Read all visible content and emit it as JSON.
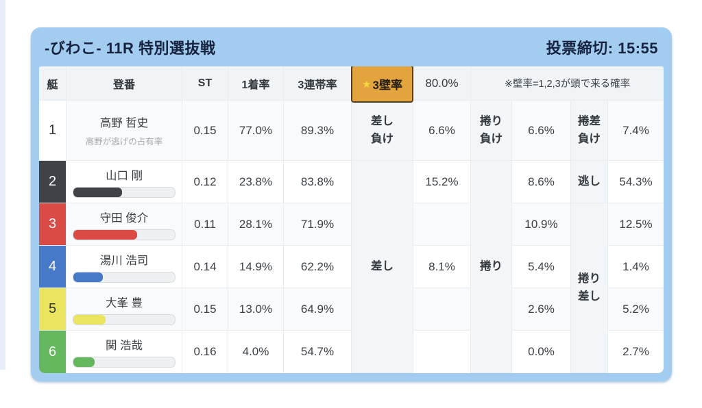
{
  "title_bar": {
    "race_title": "-びわこ- 11R 特別選抜戦",
    "deadline": "投票締切: 15:55"
  },
  "columns": {
    "boat": "艇",
    "entry": "登番",
    "st": "ST",
    "win_rate": "1着率",
    "top3_rate": "3連帯率",
    "wall_star": "★",
    "wall_label": "3壁率",
    "wall_value": "80.0%",
    "wall_note": "※壁率=1,2,3が頭で来る確率"
  },
  "move_labels": {
    "sashi_lose_1": "差し",
    "sashi_lose_2": "負け",
    "makuri_lose_1": "捲り",
    "makuri_lose_2": "負け",
    "makurizashi_lose_1": "捲差",
    "makurizashi_lose_2": "負け",
    "sashi": "差し",
    "makuri": "捲り",
    "nigashi": "逃し",
    "makurizashi_1": "捲り",
    "makurizashi_2": "差し"
  },
  "racers": [
    {
      "lane": "1",
      "lane_color": "#ffffff",
      "lane_text": "#2f353b",
      "name": "高野 哲史",
      "note": "高野が逃げの占有率",
      "st": "0.15",
      "win_rate": "77.0%",
      "top3_rate": "89.3%",
      "v1": "6.6%",
      "v2": "6.6%",
      "v3": "7.4%"
    },
    {
      "lane": "2",
      "lane_color": "#3f4247",
      "lane_text": "#ffffff",
      "name": "山口 剛",
      "bar_pct": 48,
      "st": "0.12",
      "win_rate": "23.8%",
      "top3_rate": "83.8%",
      "v1": "15.2%",
      "v2": "8.6%",
      "v3": "54.3%"
    },
    {
      "lane": "3",
      "lane_color": "#da4b45",
      "lane_text": "#ffffff",
      "name": "守田 俊介",
      "bar_pct": 63,
      "st": "0.11",
      "win_rate": "28.1%",
      "top3_rate": "71.9%",
      "v2": "10.9%",
      "v3": "12.5%"
    },
    {
      "lane": "4",
      "lane_color": "#4679c8",
      "lane_text": "#ffffff",
      "name": "湯川 浩司",
      "bar_pct": 29,
      "st": "0.14",
      "win_rate": "14.9%",
      "top3_rate": "62.2%",
      "v1": "8.1%",
      "v2": "5.4%",
      "v3": "1.4%"
    },
    {
      "lane": "5",
      "lane_color": "#eae45f",
      "lane_text": "#2f353b",
      "name": "大峯 豊",
      "bar_pct": 32,
      "st": "0.15",
      "win_rate": "13.0%",
      "top3_rate": "64.9%",
      "v2": "2.6%",
      "v3": "5.2%"
    },
    {
      "lane": "6",
      "lane_color": "#65b75d",
      "lane_text": "#ffffff",
      "name": "関 浩哉",
      "bar_pct": 21,
      "st": "0.16",
      "win_rate": "4.0%",
      "top3_rate": "54.7%",
      "v2": "0.0%",
      "v3": "2.7%"
    }
  ],
  "colors": {
    "card_frame": "#a3cdf0",
    "badge_bg": "#e3a43d",
    "badge_border": "#4e4126",
    "badge_star": "#f8d840"
  }
}
